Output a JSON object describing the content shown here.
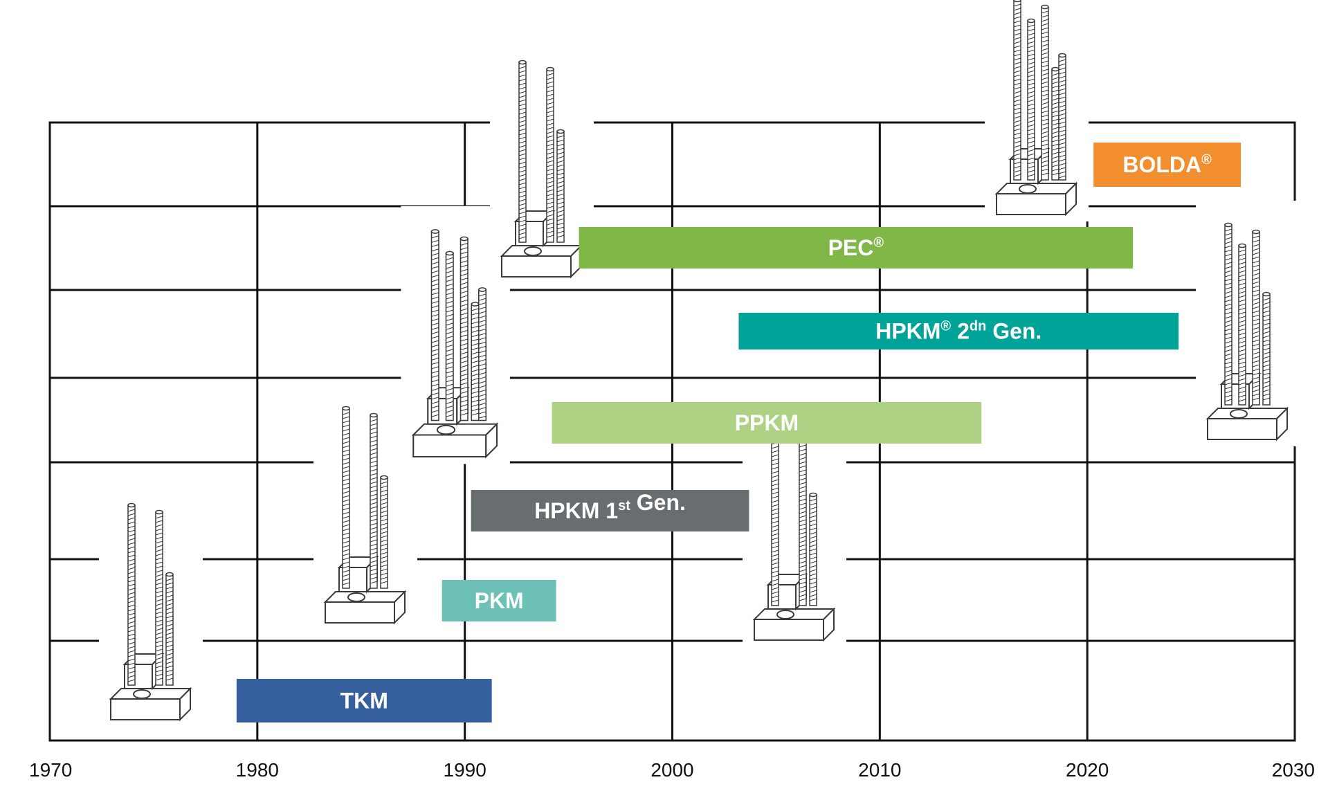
{
  "chart_data": {
    "type": "timeline",
    "title": "",
    "xlabel": "",
    "ylabel": "",
    "x_ticks": [
      1970,
      1980,
      1990,
      2000,
      2010,
      2020,
      2030
    ],
    "xlim": [
      1970,
      2030
    ],
    "grid": true,
    "bars": [
      {
        "name": "TKM",
        "start": 1979,
        "end": 1991.3,
        "color": "#365F9D",
        "sup": "",
        "suffix": ""
      },
      {
        "name": "PKM",
        "start": 1988.9,
        "end": 1994.4,
        "color": "#6DC0B5",
        "sup": "",
        "suffix": ""
      },
      {
        "name": "HPKM 1",
        "start": 1990.3,
        "end": 2003.7,
        "color": "#686D70",
        "sup": "st",
        "suffix": " Gen."
      },
      {
        "name": "PPKM",
        "start": 1994.2,
        "end": 2014.9,
        "color": "#AED283",
        "sup": "",
        "suffix": ""
      },
      {
        "name": "HPKM",
        "start": 2003.2,
        "end": 2024.4,
        "color": "#00A397",
        "sup": "® 2",
        "suffix": "",
        "sup2": "dn",
        "tail": " Gen."
      },
      {
        "name": "PEC",
        "start": 1995.5,
        "end": 2022.2,
        "color": "#7FB847",
        "sup": "®",
        "suffix": ""
      },
      {
        "name": "BOLDA",
        "start": 2020.3,
        "end": 2027.4,
        "color": "#F28E2E",
        "sup": "®",
        "suffix": ""
      }
    ],
    "anchors": [
      {
        "icon": "tkm-anchor-icon",
        "year": 1975
      },
      {
        "icon": "pkm-anchor-icon",
        "year": 1986
      },
      {
        "icon": "hpkm-1st-gen-anchor-icon",
        "year": 1991
      },
      {
        "icon": "pec-anchor-icon",
        "year": 1993.5
      },
      {
        "icon": "ppkm-anchor-icon",
        "year": 2006
      },
      {
        "icon": "bolda-anchor-icon",
        "year": 2017
      },
      {
        "icon": "hpkm-2nd-gen-anchor-icon",
        "year": 2027
      }
    ]
  }
}
